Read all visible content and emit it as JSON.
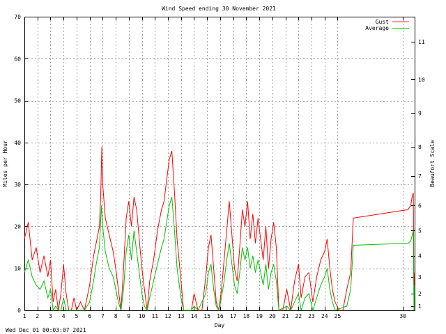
{
  "chart_data": {
    "type": "line",
    "title": "Wind Speed ending 30 November 2021",
    "xlabel": "Day",
    "ylabel": "Miles per Hour",
    "y2label": "Beaufort Scale",
    "xlim": [
      1,
      30.9
    ],
    "ylim": [
      0,
      70
    ],
    "x_ticks": [
      1,
      2,
      3,
      4,
      5,
      6,
      7,
      8,
      9,
      10,
      11,
      12,
      13,
      14,
      15,
      16,
      17,
      18,
      19,
      20,
      21,
      22,
      23,
      24,
      25,
      30
    ],
    "y_ticks": [
      0,
      10,
      20,
      30,
      40,
      50,
      60,
      70
    ],
    "beaufort_ticks": [
      {
        "label": "1",
        "mph": 1
      },
      {
        "label": "2",
        "mph": 4
      },
      {
        "label": "3",
        "mph": 8
      },
      {
        "label": "4",
        "mph": 13
      },
      {
        "label": "5",
        "mph": 19
      },
      {
        "label": "6",
        "mph": 25
      },
      {
        "label": "7",
        "mph": 32
      },
      {
        "label": "8",
        "mph": 39
      },
      {
        "label": "9",
        "mph": 47
      },
      {
        "label": "10",
        "mph": 55
      },
      {
        "label": "11",
        "mph": 64
      }
    ],
    "grid": true,
    "legend_position": "top-right",
    "series": [
      {
        "name": "Gust",
        "color": "#ff0000",
        "points": [
          [
            1.0,
            17
          ],
          [
            1.3,
            21
          ],
          [
            1.6,
            12
          ],
          [
            1.9,
            15
          ],
          [
            2.2,
            9
          ],
          [
            2.5,
            13
          ],
          [
            2.8,
            8
          ],
          [
            3.0,
            12
          ],
          [
            3.2,
            2
          ],
          [
            3.4,
            5
          ],
          [
            3.6,
            0
          ],
          [
            3.8,
            4
          ],
          [
            4.0,
            11
          ],
          [
            4.2,
            4
          ],
          [
            4.4,
            0
          ],
          [
            4.6,
            0
          ],
          [
            4.8,
            3
          ],
          [
            5.0,
            0
          ],
          [
            5.3,
            2
          ],
          [
            5.6,
            0
          ],
          [
            6.0,
            6
          ],
          [
            6.3,
            13
          ],
          [
            6.5,
            16
          ],
          [
            6.75,
            20
          ],
          [
            6.85,
            28
          ],
          [
            6.93,
            39
          ],
          [
            7.0,
            30
          ],
          [
            7.2,
            22
          ],
          [
            7.5,
            18
          ],
          [
            7.8,
            14
          ],
          [
            8.0,
            10
          ],
          [
            8.2,
            5
          ],
          [
            8.4,
            0
          ],
          [
            8.6,
            10
          ],
          [
            8.8,
            22
          ],
          [
            9.0,
            26
          ],
          [
            9.2,
            20
          ],
          [
            9.4,
            27
          ],
          [
            9.6,
            24
          ],
          [
            9.8,
            17
          ],
          [
            10.0,
            10
          ],
          [
            10.2,
            5
          ],
          [
            10.4,
            0
          ],
          [
            10.6,
            7
          ],
          [
            10.9,
            12
          ],
          [
            11.2,
            19
          ],
          [
            11.5,
            24
          ],
          [
            11.7,
            26
          ],
          [
            11.9,
            31
          ],
          [
            12.1,
            36
          ],
          [
            12.3,
            38
          ],
          [
            12.5,
            28
          ],
          [
            12.7,
            17
          ],
          [
            13.0,
            7
          ],
          [
            13.2,
            0
          ],
          [
            13.5,
            0
          ],
          [
            13.8,
            0
          ],
          [
            14.0,
            4
          ],
          [
            14.3,
            0
          ],
          [
            14.6,
            0
          ],
          [
            14.9,
            8
          ],
          [
            15.1,
            15
          ],
          [
            15.3,
            18
          ],
          [
            15.5,
            10
          ],
          [
            15.7,
            2
          ],
          [
            15.9,
            0
          ],
          [
            16.1,
            5
          ],
          [
            16.3,
            12
          ],
          [
            16.5,
            19
          ],
          [
            16.7,
            26
          ],
          [
            16.9,
            18
          ],
          [
            17.1,
            10
          ],
          [
            17.3,
            7
          ],
          [
            17.5,
            15
          ],
          [
            17.7,
            24
          ],
          [
            17.9,
            20
          ],
          [
            18.1,
            26
          ],
          [
            18.3,
            17
          ],
          [
            18.5,
            23
          ],
          [
            18.7,
            16
          ],
          [
            18.9,
            22
          ],
          [
            19.1,
            17
          ],
          [
            19.3,
            12
          ],
          [
            19.5,
            20
          ],
          [
            19.7,
            10
          ],
          [
            19.9,
            17
          ],
          [
            20.1,
            21
          ],
          [
            20.3,
            15
          ],
          [
            20.5,
            0
          ],
          [
            20.8,
            0
          ],
          [
            21.1,
            5
          ],
          [
            21.4,
            0
          ],
          [
            21.7,
            7
          ],
          [
            22.0,
            11
          ],
          [
            22.2,
            3
          ],
          [
            22.5,
            8
          ],
          [
            22.8,
            9
          ],
          [
            23.1,
            2
          ],
          [
            23.4,
            8
          ],
          [
            23.7,
            12
          ],
          [
            24.0,
            14
          ],
          [
            24.2,
            17
          ],
          [
            24.4,
            10
          ],
          [
            24.6,
            5
          ],
          [
            24.8,
            2
          ],
          [
            25.1,
            0
          ],
          [
            25.4,
            0
          ],
          [
            25.7,
            5
          ],
          [
            26.0,
            9
          ],
          [
            26.2,
            22
          ],
          [
            30.4,
            24
          ],
          [
            30.6,
            25
          ],
          [
            30.7,
            27
          ],
          [
            30.8,
            28
          ],
          [
            30.85,
            0
          ],
          [
            30.9,
            9
          ]
        ]
      },
      {
        "name": "Average",
        "color": "#00c000",
        "points": [
          [
            1.0,
            9
          ],
          [
            1.3,
            12
          ],
          [
            1.6,
            8
          ],
          [
            1.9,
            6
          ],
          [
            2.2,
            5
          ],
          [
            2.5,
            7
          ],
          [
            2.8,
            3
          ],
          [
            3.0,
            5
          ],
          [
            3.2,
            0
          ],
          [
            3.4,
            1
          ],
          [
            3.6,
            0
          ],
          [
            3.8,
            0
          ],
          [
            4.0,
            3
          ],
          [
            4.2,
            0
          ],
          [
            4.6,
            0
          ],
          [
            5.0,
            0
          ],
          [
            5.6,
            0
          ],
          [
            6.0,
            2
          ],
          [
            6.3,
            7
          ],
          [
            6.5,
            11
          ],
          [
            6.75,
            15
          ],
          [
            6.9,
            25
          ],
          [
            7.0,
            20
          ],
          [
            7.2,
            14
          ],
          [
            7.5,
            10
          ],
          [
            7.8,
            8
          ],
          [
            8.0,
            5
          ],
          [
            8.2,
            2
          ],
          [
            8.4,
            0
          ],
          [
            8.6,
            5
          ],
          [
            8.8,
            14
          ],
          [
            9.0,
            18
          ],
          [
            9.2,
            12
          ],
          [
            9.4,
            19
          ],
          [
            9.6,
            14
          ],
          [
            9.8,
            9
          ],
          [
            10.0,
            4
          ],
          [
            10.2,
            1
          ],
          [
            10.4,
            0
          ],
          [
            10.6,
            3
          ],
          [
            10.9,
            7
          ],
          [
            11.2,
            11
          ],
          [
            11.5,
            15
          ],
          [
            11.7,
            17
          ],
          [
            11.9,
            21
          ],
          [
            12.1,
            25
          ],
          [
            12.3,
            27
          ],
          [
            12.5,
            19
          ],
          [
            12.7,
            10
          ],
          [
            13.0,
            3
          ],
          [
            13.2,
            0
          ],
          [
            13.8,
            0
          ],
          [
            14.0,
            1
          ],
          [
            14.3,
            0
          ],
          [
            14.9,
            4
          ],
          [
            15.1,
            9
          ],
          [
            15.3,
            11
          ],
          [
            15.5,
            5
          ],
          [
            15.7,
            1
          ],
          [
            15.9,
            0
          ],
          [
            16.1,
            3
          ],
          [
            16.3,
            7
          ],
          [
            16.5,
            12
          ],
          [
            16.7,
            16
          ],
          [
            16.9,
            11
          ],
          [
            17.1,
            6
          ],
          [
            17.3,
            4
          ],
          [
            17.5,
            9
          ],
          [
            17.7,
            15
          ],
          [
            17.9,
            12
          ],
          [
            18.1,
            15
          ],
          [
            18.3,
            10
          ],
          [
            18.5,
            13
          ],
          [
            18.7,
            9
          ],
          [
            18.9,
            12
          ],
          [
            19.1,
            9
          ],
          [
            19.3,
            6
          ],
          [
            19.5,
            11
          ],
          [
            19.7,
            5
          ],
          [
            19.9,
            9
          ],
          [
            20.1,
            11
          ],
          [
            20.3,
            7
          ],
          [
            20.5,
            0
          ],
          [
            21.1,
            1
          ],
          [
            21.4,
            0
          ],
          [
            21.7,
            2
          ],
          [
            22.0,
            4
          ],
          [
            22.2,
            0
          ],
          [
            22.5,
            3
          ],
          [
            22.8,
            4
          ],
          [
            23.1,
            0
          ],
          [
            23.4,
            3
          ],
          [
            23.7,
            6
          ],
          [
            24.0,
            8
          ],
          [
            24.2,
            10
          ],
          [
            24.4,
            5
          ],
          [
            24.6,
            2
          ],
          [
            24.8,
            0
          ],
          [
            25.7,
            1
          ],
          [
            26.0,
            5
          ],
          [
            26.2,
            15.5
          ],
          [
            30.4,
            16
          ],
          [
            30.6,
            16.5
          ],
          [
            30.8,
            19
          ],
          [
            30.85,
            0
          ],
          [
            30.9,
            6
          ]
        ]
      }
    ]
  },
  "footer": {
    "timestamp": "Wed Dec 01 00:03:07 2021"
  }
}
